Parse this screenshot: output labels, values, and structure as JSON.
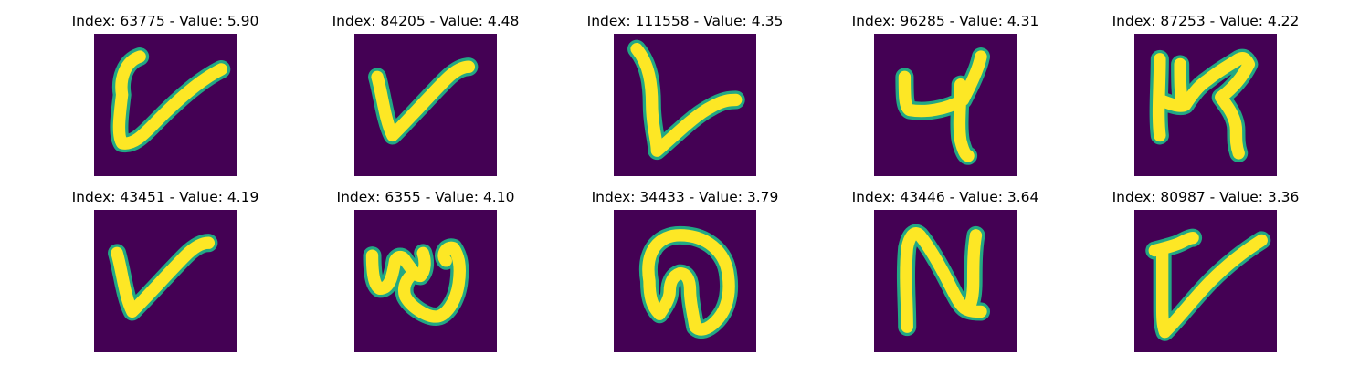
{
  "panels": [
    {
      "title": "Index: 63775 - Value: 5.90",
      "glyph": "v-curl",
      "stroke_color": "#fde725",
      "edge_color": "#22a884",
      "background_color": "#440154"
    },
    {
      "title": "Index: 84205 - Value: 4.48",
      "glyph": "v",
      "stroke_color": "#fde725",
      "edge_color": "#22a884",
      "background_color": "#440154"
    },
    {
      "title": "Index: 111558 - Value: 4.35",
      "glyph": "v-tall",
      "stroke_color": "#fde725",
      "edge_color": "#22a884",
      "background_color": "#440154"
    },
    {
      "title": "Index: 96285 - Value: 4.31",
      "glyph": "four",
      "stroke_color": "#fde725",
      "edge_color": "#22a884",
      "background_color": "#440154"
    },
    {
      "title": "Index: 87253 - Value: 4.22",
      "glyph": "k-hook",
      "stroke_color": "#fde725",
      "edge_color": "#22a884",
      "background_color": "#440154"
    },
    {
      "title": "Index: 43451 - Value: 4.19",
      "glyph": "v",
      "stroke_color": "#fde725",
      "edge_color": "#22a884",
      "background_color": "#440154"
    },
    {
      "title": "Index: 6355 - Value: 4.10",
      "glyph": "w-loop",
      "stroke_color": "#fde725",
      "edge_color": "#22a884",
      "background_color": "#440154"
    },
    {
      "title": "Index: 34433 - Value: 3.79",
      "glyph": "arch",
      "stroke_color": "#fde725",
      "edge_color": "#22a884",
      "background_color": "#440154"
    },
    {
      "title": "Index: 43446 - Value: 3.64",
      "glyph": "n",
      "stroke_color": "#fde725",
      "edge_color": "#22a884",
      "background_color": "#440154"
    },
    {
      "title": "Index: 80987 - Value: 3.36",
      "glyph": "v-serif",
      "stroke_color": "#fde725",
      "edge_color": "#22a884",
      "background_color": "#440154"
    }
  ]
}
